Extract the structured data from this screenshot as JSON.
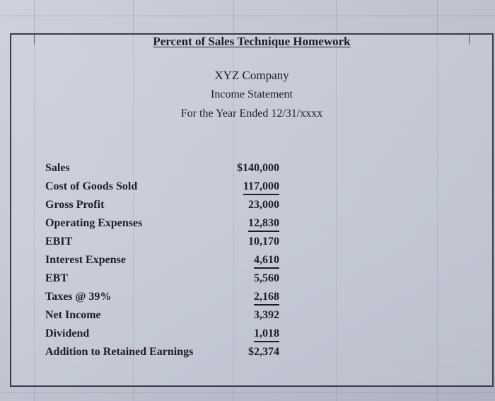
{
  "document": {
    "title": "Percent of Sales Technique Homework",
    "company": "XYZ Company",
    "statement": "Income Statement",
    "period": "For the Year Ended 12/31/xxxx"
  },
  "income_statement": [
    {
      "label": "Sales",
      "value": "$140,000",
      "underline": false
    },
    {
      "label": "Cost of Goods Sold",
      "value": "117,000",
      "underline": true
    },
    {
      "label": "Gross Profit",
      "value": "23,000",
      "underline": false
    },
    {
      "label": "Operating Expenses",
      "value": "12,830",
      "underline": true
    },
    {
      "label": "EBIT",
      "value": "10,170",
      "underline": false
    },
    {
      "label": "Interest Expense",
      "value": "4,610",
      "underline": true
    },
    {
      "label": "EBT",
      "value": "5,560",
      "underline": false
    },
    {
      "label": "Taxes @ 39%",
      "value": "2,168",
      "underline": true
    },
    {
      "label": "Net Income",
      "value": "3,392",
      "underline": false
    },
    {
      "label": "Dividend",
      "value": "1,018",
      "underline": true
    },
    {
      "label": "Addition to Retained Earnings",
      "value": "$2,374",
      "underline": false
    }
  ]
}
